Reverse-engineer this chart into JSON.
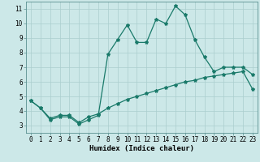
{
  "xlabel": "Humidex (Indice chaleur)",
  "xlim": [
    -0.5,
    23.5
  ],
  "ylim": [
    2.5,
    11.5
  ],
  "xticks": [
    0,
    1,
    2,
    3,
    4,
    5,
    6,
    7,
    8,
    9,
    10,
    11,
    12,
    13,
    14,
    15,
    16,
    17,
    18,
    19,
    20,
    21,
    22,
    23
  ],
  "yticks": [
    3,
    4,
    5,
    6,
    7,
    8,
    9,
    10,
    11
  ],
  "background_color": "#cce8e8",
  "grid_color": "#aacece",
  "line_color": "#1a7a6a",
  "line1_x": [
    0,
    1,
    2,
    3,
    4,
    5,
    6,
    7,
    8,
    9,
    10,
    11,
    12,
    13,
    14,
    15,
    16,
    17,
    18,
    19,
    20,
    21,
    22,
    23
  ],
  "line1_y": [
    4.7,
    4.2,
    3.4,
    3.6,
    3.6,
    3.1,
    3.4,
    3.7,
    7.9,
    8.9,
    9.9,
    8.7,
    8.7,
    10.3,
    10.0,
    11.2,
    10.6,
    8.9,
    7.7,
    6.7,
    7.0,
    7.0,
    7.0,
    6.5
  ],
  "line2_x": [
    0,
    1,
    2,
    3,
    4,
    5,
    6,
    7,
    8,
    9,
    10,
    11,
    12,
    13,
    14,
    15,
    16,
    17,
    18,
    19,
    20,
    21,
    22,
    23
  ],
  "line2_y": [
    4.7,
    4.2,
    3.5,
    3.7,
    3.7,
    3.2,
    3.6,
    3.8,
    4.2,
    4.5,
    4.8,
    5.0,
    5.2,
    5.4,
    5.6,
    5.8,
    6.0,
    6.1,
    6.3,
    6.4,
    6.5,
    6.6,
    6.7,
    5.5
  ],
  "marker": "*",
  "markersize": 3,
  "linewidth": 0.9,
  "label_fontsize": 6.5,
  "tick_fontsize": 5.5
}
